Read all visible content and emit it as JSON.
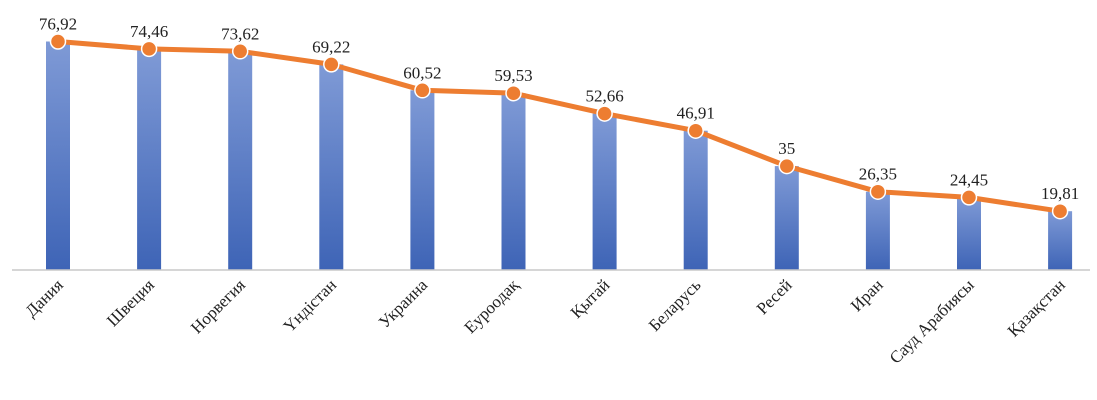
{
  "chart_data": {
    "type": "bar",
    "categories": [
      "Дания",
      "Швеция",
      "Норвегия",
      "Үндістан",
      "Украина",
      "Еуроодақ",
      "Қытай",
      "Беларусь",
      "Ресей",
      "Иран",
      "Сауд Арабиясы",
      "Қазақстан"
    ],
    "series": [
      {
        "values": [
          76.92,
          74.46,
          73.62,
          69.22,
          60.52,
          59.53,
          52.66,
          46.91,
          35,
          26.35,
          24.45,
          19.81
        ]
      }
    ],
    "overlay_line": {
      "values": [
        76.92,
        74.46,
        73.62,
        69.22,
        60.52,
        59.53,
        52.66,
        46.91,
        35,
        26.35,
        24.45,
        19.81
      ]
    },
    "value_labels": [
      "76,92",
      "74,46",
      "73,62",
      "69,22",
      "60,52",
      "59,53",
      "52,66",
      "46,91",
      "35",
      "26,35",
      "24,45",
      "19,81"
    ],
    "ylim": [
      0,
      80
    ],
    "grid": false,
    "legend": "none",
    "colors": {
      "bar_top": "#7f9ad6",
      "bar_bottom": "#3e64b6",
      "line": "#ed7d31",
      "marker": "#ed7d31",
      "axis": "#c8c8c8",
      "text": "#222222"
    }
  }
}
